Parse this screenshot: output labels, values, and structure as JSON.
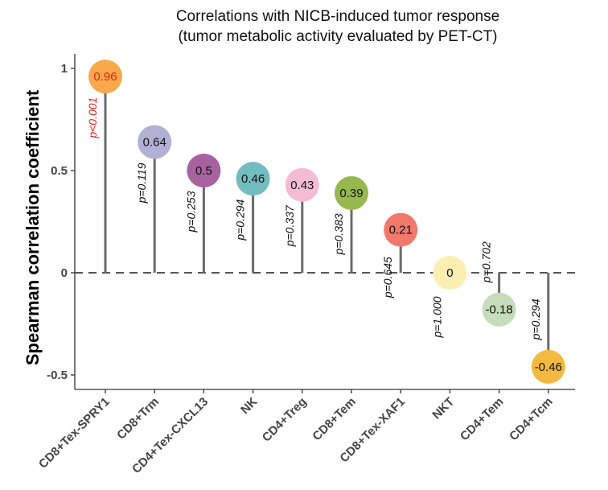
{
  "chart_data": {
    "type": "lollipop",
    "title": "Correlations with NICB-induced tumor response",
    "subtitle": "(tumor metabolic activity evaluated by PET-CT)",
    "xlabel": "",
    "ylabel": "Spearman correlation coefficient",
    "ylim": [
      -0.6,
      1.05
    ],
    "yticks": [
      -0.5,
      0,
      0.5,
      1
    ],
    "ytick_labels": [
      "-0.5",
      "0",
      "0.5",
      "1"
    ],
    "reference_line": 0,
    "categories": [
      "CD8+Tex-SPRY1",
      "CD8+Trm",
      "CD4+Tex-CXCL13",
      "NK",
      "CD4+Treg",
      "CD8+Tem",
      "CD8+Tex-XAF1",
      "NKT",
      "CD4+Tem",
      "CD4+Tcm"
    ],
    "values": [
      0.96,
      0.64,
      0.5,
      0.46,
      0.43,
      0.39,
      0.21,
      0,
      -0.18,
      -0.46
    ],
    "value_labels": [
      "0.96",
      "0.64",
      "0.5",
      "0.46",
      "0.43",
      "0.39",
      "0.21",
      "0",
      "-0.18",
      "-0.46"
    ],
    "p_labels": [
      "p<0.001",
      "p=0.119",
      "p=0.253",
      "p=0.294",
      "p=0.337",
      "p=0.383",
      "p=0.645",
      "p=1.000",
      "p=0.702",
      "p=0.294"
    ],
    "significant": [
      true,
      false,
      false,
      false,
      false,
      false,
      false,
      false,
      false,
      false
    ],
    "colors": [
      "#f9a94b",
      "#b3b0d6",
      "#a7629f",
      "#73bcbf",
      "#f4bcd3",
      "#97b84f",
      "#f2786b",
      "#fcefb1",
      "#c5ddb8",
      "#f4b93f"
    ],
    "stem_color": "#6b6b6b",
    "significant_color": "#e3211c"
  }
}
